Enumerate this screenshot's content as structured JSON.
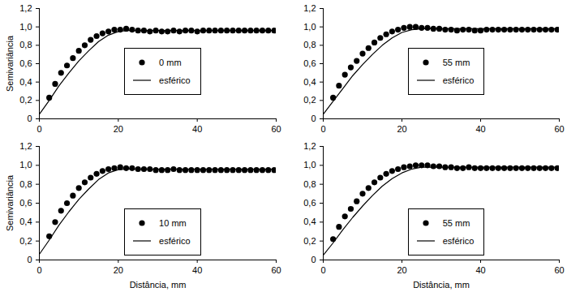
{
  "chart_data": [
    {
      "type": "scatter",
      "y_label": "Semivariância",
      "xlim": [
        0,
        60
      ],
      "xticks": [
        0,
        20,
        40,
        60
      ],
      "ylim": [
        0,
        1.2
      ],
      "yticks": [
        0,
        {
          "value": 0.2,
          "label": "0,2"
        },
        {
          "value": 0.4,
          "label": "0,4"
        },
        {
          "value": 0.6,
          "label": "0,6"
        },
        {
          "value": 0.8,
          "label": "0,8"
        },
        {
          "value": 1.0,
          "label": "1,0"
        },
        {
          "value": 1.2,
          "label": "1,2"
        }
      ],
      "legend": "center",
      "series": [
        {
          "name": "0 mm",
          "type": "scatter",
          "marker": "circle",
          "color": "#000000",
          "x": [
            2.5,
            4,
            5.5,
            7,
            8.5,
            10,
            11.5,
            13,
            14.5,
            16,
            17.5,
            19,
            20.5,
            22,
            23.5,
            25,
            26.5,
            28,
            29.5,
            31,
            32.5,
            34,
            35.5,
            37,
            38.5,
            40,
            41.5,
            43,
            44.5,
            46,
            47.5,
            49,
            50.5,
            52,
            53.5,
            55,
            56.5,
            58,
            59.5
          ],
          "values": [
            0.23,
            0.38,
            0.5,
            0.58,
            0.66,
            0.74,
            0.8,
            0.86,
            0.9,
            0.93,
            0.95,
            0.97,
            0.97,
            0.98,
            0.97,
            0.96,
            0.96,
            0.95,
            0.96,
            0.95,
            0.95,
            0.96,
            0.95,
            0.96,
            0.96,
            0.95,
            0.96,
            0.96,
            0.96,
            0.96,
            0.96,
            0.96,
            0.96,
            0.96,
            0.96,
            0.96,
            0.96,
            0.96,
            0.96
          ]
        },
        {
          "name": "esférico",
          "type": "line",
          "line_style": "solid",
          "color": "#000000",
          "x": [
            0,
            2.5,
            5,
            7.5,
            10,
            12.5,
            15,
            17.5,
            20,
            22,
            60
          ],
          "values": [
            0.05,
            0.2,
            0.36,
            0.5,
            0.63,
            0.74,
            0.84,
            0.91,
            0.95,
            0.96,
            0.96
          ]
        }
      ]
    },
    {
      "type": "scatter",
      "xlim": [
        0,
        60
      ],
      "xticks": [
        0,
        20,
        40,
        60
      ],
      "ylim": [
        0,
        1.2
      ],
      "yticks": [
        0,
        {
          "value": 0.2,
          "label": "0,2"
        },
        {
          "value": 0.4,
          "label": "0,4"
        },
        {
          "value": 0.6,
          "label": "0,6"
        },
        {
          "value": 0.8,
          "label": "0,8"
        },
        {
          "value": 1.0,
          "label": "1,0"
        },
        {
          "value": 1.2,
          "label": "1,2"
        }
      ],
      "legend": "center",
      "series": [
        {
          "name": "55 mm",
          "type": "scatter",
          "marker": "circle",
          "color": "#000000",
          "x": [
            2.5,
            4,
            5.5,
            7,
            8.5,
            10,
            11.5,
            13,
            14.5,
            16,
            17.5,
            19,
            20.5,
            22,
            23.5,
            25,
            26.5,
            28,
            29.5,
            31,
            32.5,
            34,
            35.5,
            37,
            38.5,
            40,
            41.5,
            43,
            44.5,
            46,
            47.5,
            49,
            50.5,
            52,
            53.5,
            55,
            56.5,
            58,
            59.5
          ],
          "values": [
            0.23,
            0.36,
            0.48,
            0.56,
            0.63,
            0.71,
            0.77,
            0.83,
            0.88,
            0.92,
            0.95,
            0.97,
            0.99,
            1.0,
            1.0,
            0.99,
            0.99,
            0.98,
            0.98,
            0.97,
            0.97,
            0.96,
            0.97,
            0.97,
            0.96,
            0.96,
            0.97,
            0.97,
            0.97,
            0.97,
            0.97,
            0.97,
            0.97,
            0.97,
            0.97,
            0.97,
            0.97,
            0.97,
            0.97
          ]
        },
        {
          "name": "esférico",
          "type": "line",
          "line_style": "solid",
          "color": "#000000",
          "x": [
            0,
            2.5,
            5,
            7.5,
            10,
            12.5,
            15,
            17.5,
            20,
            22.5,
            25,
            60
          ],
          "values": [
            0.05,
            0.19,
            0.33,
            0.47,
            0.59,
            0.7,
            0.8,
            0.88,
            0.94,
            0.97,
            0.98,
            0.98
          ]
        }
      ]
    },
    {
      "type": "scatter",
      "x_label": "Distância, mm",
      "y_label": "Semivariância",
      "xlim": [
        0,
        60
      ],
      "xticks": [
        0,
        20,
        40,
        60
      ],
      "ylim": [
        0,
        1.2
      ],
      "yticks": [
        0,
        {
          "value": 0.2,
          "label": "0,2"
        },
        {
          "value": 0.4,
          "label": "0,4"
        },
        {
          "value": 0.6,
          "label": "0,6"
        },
        {
          "value": 0.8,
          "label": "0,8"
        },
        {
          "value": 1.0,
          "label": "1,0"
        },
        {
          "value": 1.2,
          "label": "1,2"
        }
      ],
      "legend": "bottom",
      "series": [
        {
          "name": "10 mm",
          "type": "scatter",
          "marker": "circle",
          "color": "#000000",
          "x": [
            2.5,
            4,
            5.5,
            7,
            8.5,
            10,
            11.5,
            13,
            14.5,
            16,
            17.5,
            19,
            20.5,
            22,
            23.5,
            25,
            26.5,
            28,
            29.5,
            31,
            32.5,
            34,
            35.5,
            37,
            38.5,
            40,
            41.5,
            43,
            44.5,
            46,
            47.5,
            49,
            50.5,
            52,
            53.5,
            55,
            56.5,
            58,
            59.5
          ],
          "values": [
            0.25,
            0.4,
            0.52,
            0.6,
            0.68,
            0.76,
            0.82,
            0.87,
            0.91,
            0.94,
            0.96,
            0.97,
            0.98,
            0.97,
            0.97,
            0.96,
            0.96,
            0.96,
            0.95,
            0.95,
            0.95,
            0.96,
            0.95,
            0.95,
            0.95,
            0.95,
            0.95,
            0.95,
            0.95,
            0.95,
            0.95,
            0.95,
            0.95,
            0.95,
            0.95,
            0.95,
            0.95,
            0.95,
            0.95
          ]
        },
        {
          "name": "esférico",
          "type": "line",
          "line_style": "solid",
          "color": "#000000",
          "x": [
            0,
            2.5,
            5,
            7.5,
            10,
            12.5,
            15,
            17.5,
            20,
            22,
            60
          ],
          "values": [
            0.06,
            0.21,
            0.37,
            0.51,
            0.64,
            0.75,
            0.85,
            0.92,
            0.955,
            0.96,
            0.96
          ]
        }
      ]
    },
    {
      "type": "scatter",
      "x_label": "Distância, mm",
      "xlim": [
        0,
        60
      ],
      "xticks": [
        0,
        20,
        40,
        60
      ],
      "ylim": [
        0,
        1.2
      ],
      "yticks": [
        0,
        {
          "value": 0.2,
          "label": "0,2"
        },
        {
          "value": 0.4,
          "label": "0,4"
        },
        {
          "value": 0.6,
          "label": "0,6"
        },
        {
          "value": 0.8,
          "label": "0,8"
        },
        {
          "value": 1.0,
          "label": "1,0"
        },
        {
          "value": 1.2,
          "label": "1,2"
        }
      ],
      "legend": "bottom",
      "series": [
        {
          "name": "55 mm",
          "type": "scatter",
          "marker": "circle",
          "color": "#000000",
          "x": [
            2.5,
            4,
            5.5,
            7,
            8.5,
            10,
            11.5,
            13,
            14.5,
            16,
            17.5,
            19,
            20.5,
            22,
            23.5,
            25,
            26.5,
            28,
            29.5,
            31,
            32.5,
            34,
            35.5,
            37,
            38.5,
            40,
            41.5,
            43,
            44.5,
            46,
            47.5,
            49,
            50.5,
            52,
            53.5,
            55,
            56.5,
            58,
            59.5
          ],
          "values": [
            0.22,
            0.35,
            0.46,
            0.54,
            0.62,
            0.7,
            0.76,
            0.82,
            0.87,
            0.91,
            0.94,
            0.96,
            0.98,
            0.99,
            1.0,
            1.0,
            1.0,
            0.99,
            0.99,
            0.98,
            0.98,
            0.97,
            0.97,
            0.98,
            0.97,
            0.97,
            0.97,
            0.97,
            0.97,
            0.97,
            0.97,
            0.97,
            0.97,
            0.97,
            0.97,
            0.97,
            0.97,
            0.97,
            0.97
          ]
        },
        {
          "name": "esférico",
          "type": "line",
          "line_style": "solid",
          "color": "#000000",
          "x": [
            0,
            2.5,
            5,
            7.5,
            10,
            12.5,
            15,
            17.5,
            20,
            22.5,
            25,
            60
          ],
          "values": [
            0.05,
            0.18,
            0.32,
            0.45,
            0.57,
            0.68,
            0.78,
            0.86,
            0.92,
            0.96,
            0.98,
            0.98
          ]
        }
      ]
    }
  ]
}
